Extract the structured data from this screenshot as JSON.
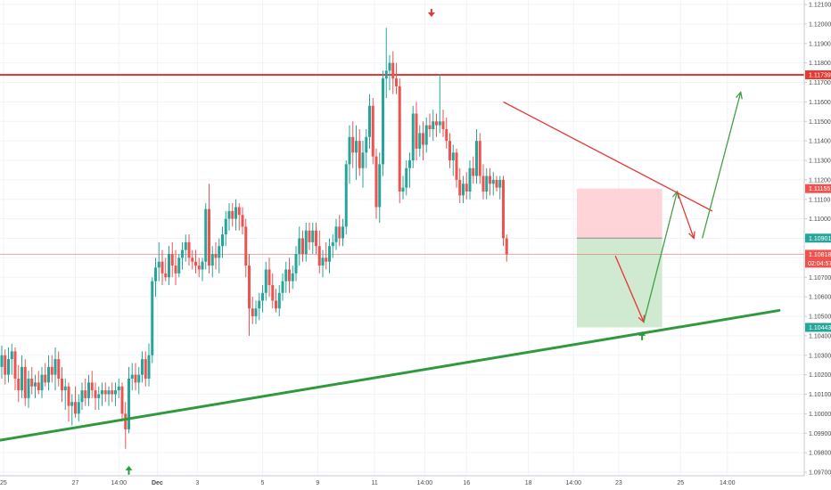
{
  "chart_data": {
    "type": "candlestick",
    "colors": {
      "up": "#26a69a",
      "down": "#ef5350",
      "grid": "#f0f3fa",
      "resistance": "#e53935",
      "support": "#2e9a3b",
      "target_zone": "#c8e6c9",
      "stop_zone": "#ffcdd2"
    },
    "y_axis": {
      "range": [
        1.097,
        1.121
      ],
      "ticks": [
        "1.12100",
        "1.12000",
        "1.11900",
        "1.11800",
        "1.11700",
        "1.11600",
        "1.11500",
        "1.11400",
        "1.11300",
        "1.11200",
        "1.11100",
        "1.11000",
        "1.10900",
        "1.10800",
        "1.10700",
        "1.10600",
        "1.10500",
        "1.10400",
        "1.10300",
        "1.10200",
        "1.10100",
        "1.10000",
        "1.09900",
        "1.09800",
        "1.09700"
      ]
    },
    "x_axis": {
      "ticks": [
        {
          "label": "25",
          "bar": 0.5
        },
        {
          "label": "27",
          "bar": 22
        },
        {
          "label": "14:00",
          "bar": 35
        },
        {
          "label": "Dec",
          "bar": 46.5
        },
        {
          "label": "3",
          "bar": 58.5
        },
        {
          "label": "5",
          "bar": 78
        },
        {
          "label": "9",
          "bar": 94.5
        },
        {
          "label": "11",
          "bar": 111.5
        },
        {
          "label": "14:00",
          "bar": 126.5
        },
        {
          "label": "16",
          "bar": 139
        },
        {
          "label": "18",
          "bar": 157.5
        },
        {
          "label": "14:00",
          "bar": 171
        },
        {
          "label": "23",
          "bar": 184.5
        },
        {
          "label": "25",
          "bar": 203
        },
        {
          "label": "14:00",
          "bar": 217
        }
      ]
    },
    "price_badges": [
      {
        "text": "1.11739",
        "price": 1.11739,
        "color": "#e53935"
      },
      {
        "text": "1.11155",
        "price": 1.11155,
        "color": "#ef5350"
      },
      {
        "text": "1.10901",
        "price": 1.10901,
        "color": "#26a69a"
      },
      {
        "text": "1.10818",
        "price": 1.10818,
        "color": "#ef5350",
        "sub": "02:04:57"
      },
      {
        "text": "1.10443",
        "price": 1.10443,
        "color": "#26a69a"
      }
    ],
    "levels": {
      "resistance": 1.11739,
      "current": 1.10818
    },
    "support_trendline": [
      [
        -2,
        1.0986
      ],
      [
        232.5,
        1.1053
      ]
    ],
    "descending_trendline": [
      [
        150,
        1.116
      ],
      [
        212.5,
        1.1104
      ]
    ],
    "position": {
      "bar_start": 172,
      "bar_end": 197.5,
      "stop": 1.11155,
      "entry": 1.10901,
      "target": 1.10443
    },
    "projection_red": [
      [
        183.5,
        1.1081
      ],
      [
        192,
        1.1047
      ]
    ],
    "projection_green": [
      [
        192,
        1.1047
      ],
      [
        202,
        1.1114
      ],
      [
        207,
        1.109
      ]
    ],
    "projection_green_2": [
      [
        209.5,
        1.109
      ],
      [
        221,
        1.1165
      ]
    ],
    "markers": [
      {
        "type": "arrow-down",
        "color": "#e53935",
        "bar": 128.5,
        "price": 1.1205
      },
      {
        "type": "arrow-up",
        "color": "#2e9a3b",
        "bar": 38,
        "price": 1.0971
      },
      {
        "type": "arrow-up",
        "color": "#2e9a3b",
        "bar": 191.5,
        "price": 1.104
      }
    ],
    "candles": [
      {
        "o": 1.1024,
        "h": 1.1035,
        "l": 1.1018,
        "c": 1.103
      },
      {
        "o": 1.103,
        "h": 1.1033,
        "l": 1.1015,
        "c": 1.102
      },
      {
        "o": 1.102,
        "h": 1.1034,
        "l": 1.1016,
        "c": 1.1028
      },
      {
        "o": 1.1028,
        "h": 1.1036,
        "l": 1.102,
        "c": 1.1032
      },
      {
        "o": 1.1032,
        "h": 1.1034,
        "l": 1.1012,
        "c": 1.1018
      },
      {
        "o": 1.1018,
        "h": 1.1025,
        "l": 1.1006,
        "c": 1.1012
      },
      {
        "o": 1.1012,
        "h": 1.103,
        "l": 1.1008,
        "c": 1.1024
      },
      {
        "o": 1.1024,
        "h": 1.1028,
        "l": 1.1004,
        "c": 1.1008
      },
      {
        "o": 1.1008,
        "h": 1.1022,
        "l": 1.1003,
        "c": 1.1018
      },
      {
        "o": 1.1018,
        "h": 1.1024,
        "l": 1.101,
        "c": 1.1014
      },
      {
        "o": 1.1014,
        "h": 1.102,
        "l": 1.1008,
        "c": 1.1016
      },
      {
        "o": 1.1016,
        "h": 1.1022,
        "l": 1.101,
        "c": 1.1012
      },
      {
        "o": 1.1012,
        "h": 1.1024,
        "l": 1.1008,
        "c": 1.102
      },
      {
        "o": 1.102,
        "h": 1.1026,
        "l": 1.1014,
        "c": 1.1016
      },
      {
        "o": 1.1016,
        "h": 1.103,
        "l": 1.1012,
        "c": 1.1024
      },
      {
        "o": 1.1024,
        "h": 1.103,
        "l": 1.1016,
        "c": 1.102
      },
      {
        "o": 1.102,
        "h": 1.1034,
        "l": 1.1012,
        "c": 1.1028
      },
      {
        "o": 1.1028,
        "h": 1.1032,
        "l": 1.1014,
        "c": 1.1018
      },
      {
        "o": 1.1018,
        "h": 1.1024,
        "l": 1.1006,
        "c": 1.1012
      },
      {
        "o": 1.1012,
        "h": 1.1018,
        "l": 1.1002,
        "c": 1.1014
      },
      {
        "o": 1.1014,
        "h": 1.1016,
        "l": 1.0996,
        "c": 1.1004
      },
      {
        "o": 1.1004,
        "h": 1.101,
        "l": 1.0994,
        "c": 1.1006
      },
      {
        "o": 1.1006,
        "h": 1.1014,
        "l": 1.0998,
        "c": 1.1
      },
      {
        "o": 1.1,
        "h": 1.101,
        "l": 1.0996,
        "c": 1.1006
      },
      {
        "o": 1.1006,
        "h": 1.1016,
        "l": 1.1002,
        "c": 1.1012
      },
      {
        "o": 1.1012,
        "h": 1.1018,
        "l": 1.1004,
        "c": 1.1008
      },
      {
        "o": 1.1008,
        "h": 1.102,
        "l": 1.1004,
        "c": 1.1016
      },
      {
        "o": 1.1016,
        "h": 1.1022,
        "l": 1.1008,
        "c": 1.1012
      },
      {
        "o": 1.1012,
        "h": 1.1016,
        "l": 1.1002,
        "c": 1.1008
      },
      {
        "o": 1.1008,
        "h": 1.1014,
        "l": 1.1002,
        "c": 1.101
      },
      {
        "o": 1.101,
        "h": 1.1016,
        "l": 1.1004,
        "c": 1.1012
      },
      {
        "o": 1.1012,
        "h": 1.1016,
        "l": 1.1006,
        "c": 1.101
      },
      {
        "o": 1.101,
        "h": 1.1014,
        "l": 1.1004,
        "c": 1.1012
      },
      {
        "o": 1.1012,
        "h": 1.1016,
        "l": 1.1006,
        "c": 1.101
      },
      {
        "o": 1.101,
        "h": 1.1016,
        "l": 1.1004,
        "c": 1.1012
      },
      {
        "o": 1.1012,
        "h": 1.1018,
        "l": 1.1008,
        "c": 1.1014
      },
      {
        "o": 1.1014,
        "h": 1.1016,
        "l": 1.0996,
        "c": 1.1
      },
      {
        "o": 1.1,
        "h": 1.1006,
        "l": 1.0982,
        "c": 1.0992
      },
      {
        "o": 1.0992,
        "h": 1.1024,
        "l": 1.099,
        "c": 1.1018
      },
      {
        "o": 1.1018,
        "h": 1.1026,
        "l": 1.1012,
        "c": 1.102
      },
      {
        "o": 1.102,
        "h": 1.1026,
        "l": 1.1012,
        "c": 1.1016
      },
      {
        "o": 1.1016,
        "h": 1.1024,
        "l": 1.101,
        "c": 1.102
      },
      {
        "o": 1.102,
        "h": 1.1032,
        "l": 1.1016,
        "c": 1.1028
      },
      {
        "o": 1.1028,
        "h": 1.1032,
        "l": 1.1014,
        "c": 1.1018
      },
      {
        "o": 1.1018,
        "h": 1.1036,
        "l": 1.1014,
        "c": 1.103
      },
      {
        "o": 1.103,
        "h": 1.107,
        "l": 1.1026,
        "c": 1.1068
      },
      {
        "o": 1.1068,
        "h": 1.108,
        "l": 1.106,
        "c": 1.1075
      },
      {
        "o": 1.1075,
        "h": 1.1088,
        "l": 1.1068,
        "c": 1.1078
      },
      {
        "o": 1.1078,
        "h": 1.1084,
        "l": 1.1066,
        "c": 1.1072
      },
      {
        "o": 1.1072,
        "h": 1.108,
        "l": 1.1068,
        "c": 1.107
      },
      {
        "o": 1.107,
        "h": 1.1086,
        "l": 1.1066,
        "c": 1.1082
      },
      {
        "o": 1.1082,
        "h": 1.1088,
        "l": 1.107,
        "c": 1.1076
      },
      {
        "o": 1.1076,
        "h": 1.1084,
        "l": 1.1066,
        "c": 1.1072
      },
      {
        "o": 1.1072,
        "h": 1.1082,
        "l": 1.107,
        "c": 1.108
      },
      {
        "o": 1.108,
        "h": 1.1088,
        "l": 1.1074,
        "c": 1.1084
      },
      {
        "o": 1.1084,
        "h": 1.1092,
        "l": 1.1078,
        "c": 1.1088
      },
      {
        "o": 1.1088,
        "h": 1.1092,
        "l": 1.1076,
        "c": 1.108
      },
      {
        "o": 1.108,
        "h": 1.1084,
        "l": 1.1074,
        "c": 1.1078
      },
      {
        "o": 1.1078,
        "h": 1.1084,
        "l": 1.1072,
        "c": 1.1076
      },
      {
        "o": 1.1076,
        "h": 1.108,
        "l": 1.107,
        "c": 1.1074
      },
      {
        "o": 1.1074,
        "h": 1.108,
        "l": 1.1068,
        "c": 1.1078
      },
      {
        "o": 1.1078,
        "h": 1.1108,
        "l": 1.1074,
        "c": 1.1105
      },
      {
        "o": 1.1105,
        "h": 1.1118,
        "l": 1.1072,
        "c": 1.1076
      },
      {
        "o": 1.1076,
        "h": 1.1086,
        "l": 1.107,
        "c": 1.1082
      },
      {
        "o": 1.1082,
        "h": 1.1088,
        "l": 1.1074,
        "c": 1.108
      },
      {
        "o": 1.108,
        "h": 1.109,
        "l": 1.1072,
        "c": 1.1086
      },
      {
        "o": 1.1086,
        "h": 1.1096,
        "l": 1.108,
        "c": 1.1092
      },
      {
        "o": 1.1092,
        "h": 1.1104,
        "l": 1.1086,
        "c": 1.11
      },
      {
        "o": 1.11,
        "h": 1.1108,
        "l": 1.1094,
        "c": 1.1104
      },
      {
        "o": 1.1104,
        "h": 1.1108,
        "l": 1.1096,
        "c": 1.11
      },
      {
        "o": 1.11,
        "h": 1.111,
        "l": 1.1094,
        "c": 1.1106
      },
      {
        "o": 1.1106,
        "h": 1.1108,
        "l": 1.1094,
        "c": 1.1102
      },
      {
        "o": 1.1102,
        "h": 1.1106,
        "l": 1.1092,
        "c": 1.1096
      },
      {
        "o": 1.1096,
        "h": 1.11,
        "l": 1.107,
        "c": 1.1076
      },
      {
        "o": 1.1076,
        "h": 1.1082,
        "l": 1.104,
        "c": 1.1054
      },
      {
        "o": 1.1054,
        "h": 1.106,
        "l": 1.1046,
        "c": 1.105
      },
      {
        "o": 1.105,
        "h": 1.1058,
        "l": 1.1046,
        "c": 1.1054
      },
      {
        "o": 1.1054,
        "h": 1.1062,
        "l": 1.1048,
        "c": 1.1058
      },
      {
        "o": 1.1058,
        "h": 1.1066,
        "l": 1.1052,
        "c": 1.1062
      },
      {
        "o": 1.1062,
        "h": 1.1078,
        "l": 1.1058,
        "c": 1.1074
      },
      {
        "o": 1.1074,
        "h": 1.108,
        "l": 1.106,
        "c": 1.1066
      },
      {
        "o": 1.1066,
        "h": 1.1072,
        "l": 1.1054,
        "c": 1.1058
      },
      {
        "o": 1.1058,
        "h": 1.1064,
        "l": 1.1052,
        "c": 1.1054
      },
      {
        "o": 1.1054,
        "h": 1.1066,
        "l": 1.105,
        "c": 1.1062
      },
      {
        "o": 1.1062,
        "h": 1.1072,
        "l": 1.1058,
        "c": 1.1068
      },
      {
        "o": 1.1068,
        "h": 1.1078,
        "l": 1.1062,
        "c": 1.1074
      },
      {
        "o": 1.1074,
        "h": 1.108,
        "l": 1.1062,
        "c": 1.1068
      },
      {
        "o": 1.1068,
        "h": 1.1076,
        "l": 1.1064,
        "c": 1.1072
      },
      {
        "o": 1.1072,
        "h": 1.1086,
        "l": 1.1068,
        "c": 1.1082
      },
      {
        "o": 1.1082,
        "h": 1.1096,
        "l": 1.1076,
        "c": 1.109
      },
      {
        "o": 1.109,
        "h": 1.1094,
        "l": 1.1078,
        "c": 1.1082
      },
      {
        "o": 1.1082,
        "h": 1.1098,
        "l": 1.1078,
        "c": 1.1094
      },
      {
        "o": 1.1094,
        "h": 1.1098,
        "l": 1.1084,
        "c": 1.1088
      },
      {
        "o": 1.1088,
        "h": 1.1098,
        "l": 1.1082,
        "c": 1.1094
      },
      {
        "o": 1.1094,
        "h": 1.1098,
        "l": 1.1082,
        "c": 1.1086
      },
      {
        "o": 1.1086,
        "h": 1.1094,
        "l": 1.1072,
        "c": 1.1076
      },
      {
        "o": 1.1076,
        "h": 1.1084,
        "l": 1.107,
        "c": 1.108
      },
      {
        "o": 1.108,
        "h": 1.1088,
        "l": 1.1074,
        "c": 1.1078
      },
      {
        "o": 1.1078,
        "h": 1.109,
        "l": 1.1072,
        "c": 1.1086
      },
      {
        "o": 1.1086,
        "h": 1.1092,
        "l": 1.108,
        "c": 1.1088
      },
      {
        "o": 1.1088,
        "h": 1.11,
        "l": 1.1084,
        "c": 1.1096
      },
      {
        "o": 1.1096,
        "h": 1.1102,
        "l": 1.1086,
        "c": 1.109
      },
      {
        "o": 1.109,
        "h": 1.11,
        "l": 1.1086,
        "c": 1.1096
      },
      {
        "o": 1.1096,
        "h": 1.113,
        "l": 1.1092,
        "c": 1.1128
      },
      {
        "o": 1.1128,
        "h": 1.1148,
        "l": 1.1118,
        "c": 1.1142
      },
      {
        "o": 1.1142,
        "h": 1.115,
        "l": 1.1126,
        "c": 1.1134
      },
      {
        "o": 1.1134,
        "h": 1.1148,
        "l": 1.112,
        "c": 1.114
      },
      {
        "o": 1.114,
        "h": 1.1146,
        "l": 1.1122,
        "c": 1.1126
      },
      {
        "o": 1.1126,
        "h": 1.114,
        "l": 1.1116,
        "c": 1.1134
      },
      {
        "o": 1.1134,
        "h": 1.1146,
        "l": 1.1126,
        "c": 1.1142
      },
      {
        "o": 1.1142,
        "h": 1.1164,
        "l": 1.1136,
        "c": 1.1158
      },
      {
        "o": 1.1158,
        "h": 1.1162,
        "l": 1.1128,
        "c": 1.1132
      },
      {
        "o": 1.1132,
        "h": 1.1136,
        "l": 1.11,
        "c": 1.1106
      },
      {
        "o": 1.1106,
        "h": 1.1134,
        "l": 1.1098,
        "c": 1.1128
      },
      {
        "o": 1.1128,
        "h": 1.1176,
        "l": 1.1122,
        "c": 1.1172
      },
      {
        "o": 1.1172,
        "h": 1.1198,
        "l": 1.1162,
        "c": 1.1176
      },
      {
        "o": 1.1176,
        "h": 1.1184,
        "l": 1.1166,
        "c": 1.118
      },
      {
        "o": 1.118,
        "h": 1.1186,
        "l": 1.1164,
        "c": 1.1172
      },
      {
        "o": 1.1172,
        "h": 1.118,
        "l": 1.1164,
        "c": 1.1168
      },
      {
        "o": 1.1168,
        "h": 1.1172,
        "l": 1.1108,
        "c": 1.1114
      },
      {
        "o": 1.1114,
        "h": 1.1122,
        "l": 1.111,
        "c": 1.1116
      },
      {
        "o": 1.1116,
        "h": 1.113,
        "l": 1.1112,
        "c": 1.1126
      },
      {
        "o": 1.1126,
        "h": 1.1134,
        "l": 1.1116,
        "c": 1.113
      },
      {
        "o": 1.113,
        "h": 1.1158,
        "l": 1.1126,
        "c": 1.1154
      },
      {
        "o": 1.1154,
        "h": 1.116,
        "l": 1.113,
        "c": 1.1136
      },
      {
        "o": 1.1136,
        "h": 1.1148,
        "l": 1.1132,
        "c": 1.1144
      },
      {
        "o": 1.1144,
        "h": 1.115,
        "l": 1.113,
        "c": 1.1138
      },
      {
        "o": 1.1138,
        "h": 1.1152,
        "l": 1.1134,
        "c": 1.1148
      },
      {
        "o": 1.1148,
        "h": 1.1154,
        "l": 1.1142,
        "c": 1.1146
      },
      {
        "o": 1.1146,
        "h": 1.1156,
        "l": 1.114,
        "c": 1.115
      },
      {
        "o": 1.115,
        "h": 1.1154,
        "l": 1.1142,
        "c": 1.1148
      },
      {
        "o": 1.1148,
        "h": 1.1174,
        "l": 1.1144,
        "c": 1.115
      },
      {
        "o": 1.115,
        "h": 1.1156,
        "l": 1.1142,
        "c": 1.1146
      },
      {
        "o": 1.1146,
        "h": 1.1152,
        "l": 1.1136,
        "c": 1.114
      },
      {
        "o": 1.114,
        "h": 1.1144,
        "l": 1.1126,
        "c": 1.113
      },
      {
        "o": 1.113,
        "h": 1.1138,
        "l": 1.1122,
        "c": 1.1134
      },
      {
        "o": 1.1134,
        "h": 1.1136,
        "l": 1.1116,
        "c": 1.112
      },
      {
        "o": 1.112,
        "h": 1.1126,
        "l": 1.1108,
        "c": 1.1112
      },
      {
        "o": 1.1112,
        "h": 1.1122,
        "l": 1.1108,
        "c": 1.1118
      },
      {
        "o": 1.1118,
        "h": 1.1124,
        "l": 1.111,
        "c": 1.1114
      },
      {
        "o": 1.1114,
        "h": 1.113,
        "l": 1.111,
        "c": 1.1126
      },
      {
        "o": 1.1126,
        "h": 1.1132,
        "l": 1.1118,
        "c": 1.1122
      },
      {
        "o": 1.1122,
        "h": 1.1146,
        "l": 1.1118,
        "c": 1.114
      },
      {
        "o": 1.114,
        "h": 1.1144,
        "l": 1.1118,
        "c": 1.1122
      },
      {
        "o": 1.1122,
        "h": 1.1128,
        "l": 1.111,
        "c": 1.1114
      },
      {
        "o": 1.1114,
        "h": 1.1126,
        "l": 1.111,
        "c": 1.1122
      },
      {
        "o": 1.1122,
        "h": 1.1126,
        "l": 1.1112,
        "c": 1.1118
      },
      {
        "o": 1.1118,
        "h": 1.1124,
        "l": 1.1112,
        "c": 1.112
      },
      {
        "o": 1.112,
        "h": 1.1122,
        "l": 1.1114,
        "c": 1.1116
      },
      {
        "o": 1.1116,
        "h": 1.1122,
        "l": 1.111,
        "c": 1.112
      },
      {
        "o": 1.112,
        "h": 1.1122,
        "l": 1.1086,
        "c": 1.109
      },
      {
        "o": 1.109,
        "h": 1.1092,
        "l": 1.1078,
        "c": 1.10818
      }
    ]
  }
}
